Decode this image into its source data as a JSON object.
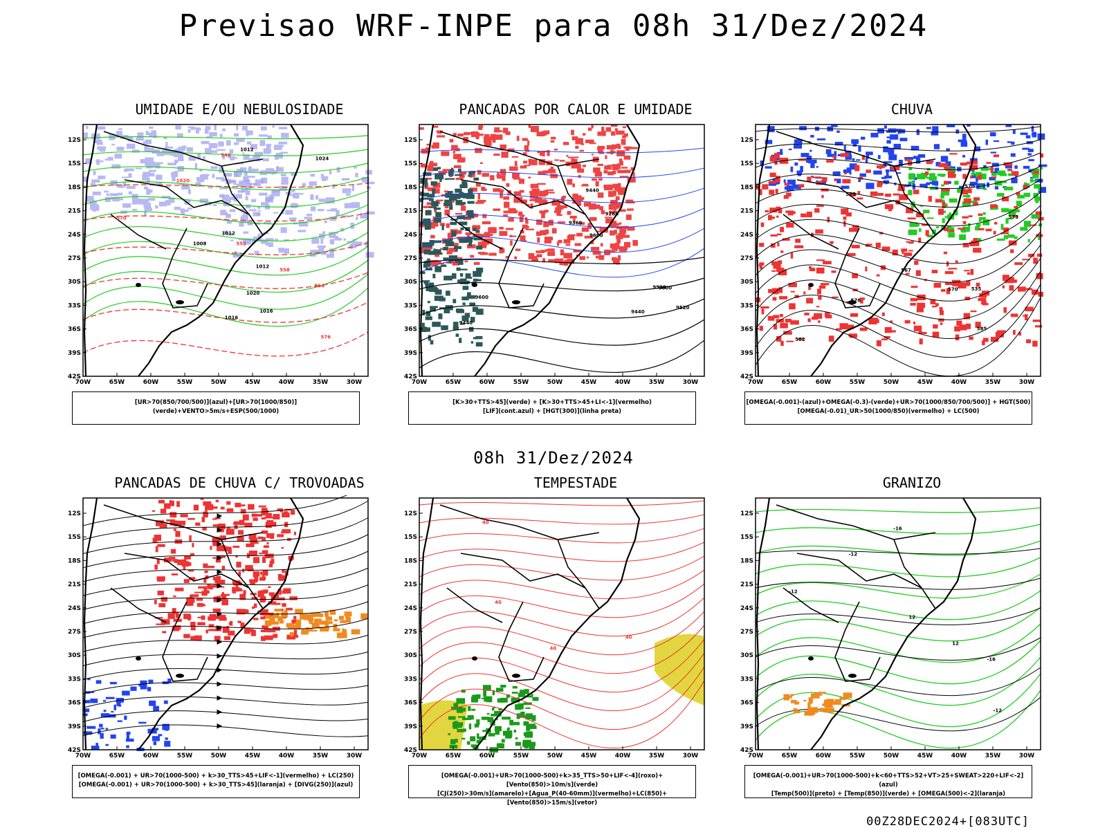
{
  "title": "Previsao WRF-INPE  para 08h 31/Dez/2024",
  "mid_title": "08h 31/Dez/2024",
  "footer": "00Z28DEC2024+[083UTC]",
  "axes": {
    "lat_labels": [
      "12S",
      "15S",
      "18S",
      "21S",
      "24S",
      "27S",
      "30S",
      "33S",
      "36S",
      "39S",
      "42S"
    ],
    "lon_labels": [
      "70W",
      "65W",
      "60W",
      "55W",
      "50W",
      "45W",
      "40W",
      "35W",
      "30W"
    ]
  },
  "colors": {
    "blue_shade": "#a7a7f0",
    "green": "#22cc22",
    "red": "#ee3333",
    "red_shade": "#ee4444",
    "teal": "#2c5858",
    "blue": "#2244ee",
    "yellow": "#e2d640",
    "orange": "#f08a20",
    "black": "#000000"
  },
  "panels": [
    {
      "title": "UMIDADE E/OU NEBULOSIDADE",
      "caption_lines": [
        "[UR>70(850/700/500)](azul)+[UR>70(1000/850)](verde)+VENTO>5m/s+ESP(500/1000)"
      ],
      "contour_labels": [
        "1012",
        "1012",
        "1016",
        "1020",
        "1008",
        "1012",
        "1016",
        "1024",
        "1020",
        "576",
        "570",
        "564",
        "558",
        "552",
        "546"
      ]
    },
    {
      "title": "PANCADAS POR CALOR E UMIDADE",
      "caption_lines": [
        "[K>30+TTS>45](verde) + [K>30+TTS>45+LI<-1](vermelho)",
        "[LIF](cont.azul) + [HGT(300)](linha preta)"
      ],
      "contour_labels": [
        "9600",
        "9600",
        "9520",
        "9520",
        "9440",
        "9440",
        "9360",
        "9280",
        "9600",
        "9440"
      ]
    },
    {
      "title": "CHUVA",
      "caption_lines": [
        "[OMEGA(-0.001)-(azul)+OMEGA(-0.3)-(verde)+UR>70(1000/850/700/500)] + HGT(500)",
        "[OMEGA(-0.01)_UR>50(1000/850)(vermelho) + LC(500)"
      ],
      "contour_labels": [
        "585",
        "582",
        "579",
        "576",
        "573",
        "570",
        "567",
        "570",
        "535"
      ]
    },
    {
      "title": "PANCADAS DE CHUVA C/ TROVOADAS",
      "caption_lines": [
        "[OMEGA(-0.001) + UR>70(1000-500) + k>30_TTS>45+LIF<-1](vermelho) + LC(250)",
        "[OMEGA(-0.001) + UR>70(1000-500) + k>30_TTS>45](laranja) + [DIVG(250)](azul)"
      ],
      "contour_labels": []
    },
    {
      "title": "TEMPESTADE",
      "caption_lines": [
        "[OMEGA(-0.001)+UR>70(1000-500)+k>35_TTS>50+LIF<-4](roxo)+[Vento(850)>10m/s](verde)",
        "[CJ(250)>30m/s](amarelo)+[Agua_P(40-60mm)](vermelho)+LC(850)+[Vento(850)>15m/s](vetor)"
      ],
      "contour_labels": [
        "40",
        "40",
        "40",
        "40"
      ]
    },
    {
      "title": "GRANIZO",
      "caption_lines": [
        "[OMEGA(-0.001)+UR>70(1000-500)+k<60+TTS>52+VT>25+SWEAT>220+LIF<-2](azul)",
        "[Temp(500)](preto) + [Temp(850)](verde) + [OMEGA(500)<-2](laranja)"
      ],
      "contour_labels": [
        "-12",
        "-12",
        "-12",
        "-16",
        "12",
        "12",
        "-16"
      ]
    }
  ]
}
